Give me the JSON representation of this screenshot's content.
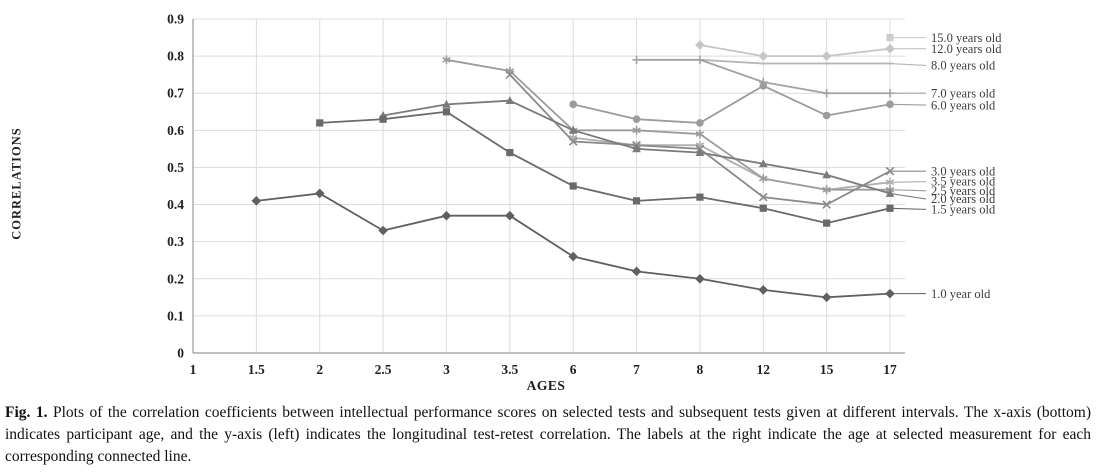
{
  "chart_data": {
    "type": "line",
    "title": "",
    "xlabel": "AGES",
    "ylabel": "CORRELATIONS",
    "x_values": [
      1,
      1.5,
      2,
      2.5,
      3,
      3.5,
      6,
      7,
      8,
      12,
      15,
      17
    ],
    "x_ticks": [
      "1",
      "1.5",
      "2",
      "2.5",
      "3",
      "3.5",
      "6",
      "7",
      "8",
      "12",
      "15",
      "17"
    ],
    "y_ticks": [
      "0",
      "0.1",
      "0.2",
      "0.3",
      "0.4",
      "0.5",
      "0.6",
      "0.7",
      "0.8",
      "0.9"
    ],
    "ylim": [
      0,
      0.9
    ],
    "grid": true,
    "legend_position": "right",
    "colors": {
      "grid": "#dcdcdc",
      "axis": "#9a9a9a",
      "tick_text": "#1f1f1f",
      "legend_text": "#3d3d3d"
    },
    "series": [
      {
        "name": "15.0 years old",
        "marker": "square",
        "color": "#cdcdcd",
        "label_y": 0.85,
        "points": [
          [
            17,
            0.85
          ]
        ]
      },
      {
        "name": "12.0 years old",
        "marker": "diamond",
        "color": "#c6c6c6",
        "label_y": 0.82,
        "points": [
          [
            8,
            0.83
          ],
          [
            12,
            0.8
          ],
          [
            15,
            0.8
          ],
          [
            17,
            0.82
          ]
        ]
      },
      {
        "name": "8.0 years old",
        "marker": "dash",
        "color": "#b5b5b5",
        "label_y": 0.775,
        "points": [
          [
            8,
            0.79
          ],
          [
            12,
            0.78
          ],
          [
            15,
            0.78
          ],
          [
            17,
            0.78
          ]
        ]
      },
      {
        "name": "7.0 years old",
        "marker": "plus",
        "color": "#a2a2a2",
        "label_y": 0.7,
        "points": [
          [
            7,
            0.79
          ],
          [
            8,
            0.79
          ],
          [
            12,
            0.73
          ],
          [
            15,
            0.7
          ],
          [
            17,
            0.7
          ]
        ]
      },
      {
        "name": "6.0 years old",
        "marker": "circle",
        "color": "#9c9c9c",
        "label_y": 0.668,
        "points": [
          [
            6,
            0.67
          ],
          [
            7,
            0.63
          ],
          [
            8,
            0.62
          ],
          [
            12,
            0.72
          ],
          [
            15,
            0.64
          ],
          [
            17,
            0.67
          ]
        ]
      },
      {
        "name": "3.5 years old",
        "marker": "asterisk",
        "color": "#b0b0b0",
        "label_y": 0.462,
        "points": [
          [
            6,
            0.58
          ],
          [
            7,
            0.56
          ],
          [
            8,
            0.56
          ],
          [
            12,
            0.47
          ],
          [
            15,
            0.44
          ],
          [
            17,
            0.46
          ]
        ]
      },
      {
        "name": "2.5 years old",
        "marker": "asterisk",
        "color": "#9c9c9c",
        "label_y": 0.437,
        "points": [
          [
            3,
            0.79
          ],
          [
            3.5,
            0.76
          ],
          [
            6,
            0.6
          ],
          [
            7,
            0.6
          ],
          [
            8,
            0.59
          ],
          [
            12,
            0.47
          ],
          [
            15,
            0.44
          ],
          [
            17,
            0.44
          ]
        ]
      },
      {
        "name": "3.0 years old",
        "marker": "x",
        "color": "#8a8a8a",
        "label_y": 0.49,
        "points": [
          [
            3.5,
            0.75
          ],
          [
            6,
            0.57
          ],
          [
            7,
            0.56
          ],
          [
            8,
            0.55
          ],
          [
            12,
            0.42
          ],
          [
            15,
            0.4
          ],
          [
            17,
            0.49
          ]
        ]
      },
      {
        "name": "2.0 years old",
        "marker": "triangle",
        "color": "#7a7a7a",
        "label_y": 0.415,
        "points": [
          [
            2.5,
            0.64
          ],
          [
            3,
            0.67
          ],
          [
            3.5,
            0.68
          ],
          [
            6,
            0.6
          ],
          [
            7,
            0.55
          ],
          [
            8,
            0.54
          ],
          [
            12,
            0.51
          ],
          [
            15,
            0.48
          ],
          [
            17,
            0.43
          ]
        ]
      },
      {
        "name": "1.5 years old",
        "marker": "square",
        "color": "#6a6a6a",
        "label_y": 0.387,
        "points": [
          [
            2,
            0.62
          ],
          [
            2.5,
            0.63
          ],
          [
            3,
            0.65
          ],
          [
            3.5,
            0.54
          ],
          [
            6,
            0.45
          ],
          [
            7,
            0.41
          ],
          [
            8,
            0.42
          ],
          [
            12,
            0.39
          ],
          [
            15,
            0.35
          ],
          [
            17,
            0.39
          ]
        ]
      },
      {
        "name": "1.0 year old",
        "marker": "diamond",
        "color": "#606060",
        "label_y": 0.16,
        "points": [
          [
            1.5,
            0.41
          ],
          [
            2,
            0.43
          ],
          [
            2.5,
            0.33
          ],
          [
            3,
            0.37
          ],
          [
            3.5,
            0.37
          ],
          [
            6,
            0.26
          ],
          [
            7,
            0.22
          ],
          [
            8,
            0.2
          ],
          [
            12,
            0.17
          ],
          [
            15,
            0.15
          ],
          [
            17,
            0.16
          ]
        ]
      }
    ]
  },
  "caption": {
    "prefix": "Fig. 1.",
    "body": " Plots of the correlation coefficients between intellectual performance scores on selected tests and subsequent tests given at different intervals. The x-axis (bottom) indicates participant age, and the y-axis (left) indicates the longitudinal test-retest correlation. The labels at the right indicate the age at selected measurement for each corresponding connected line."
  }
}
